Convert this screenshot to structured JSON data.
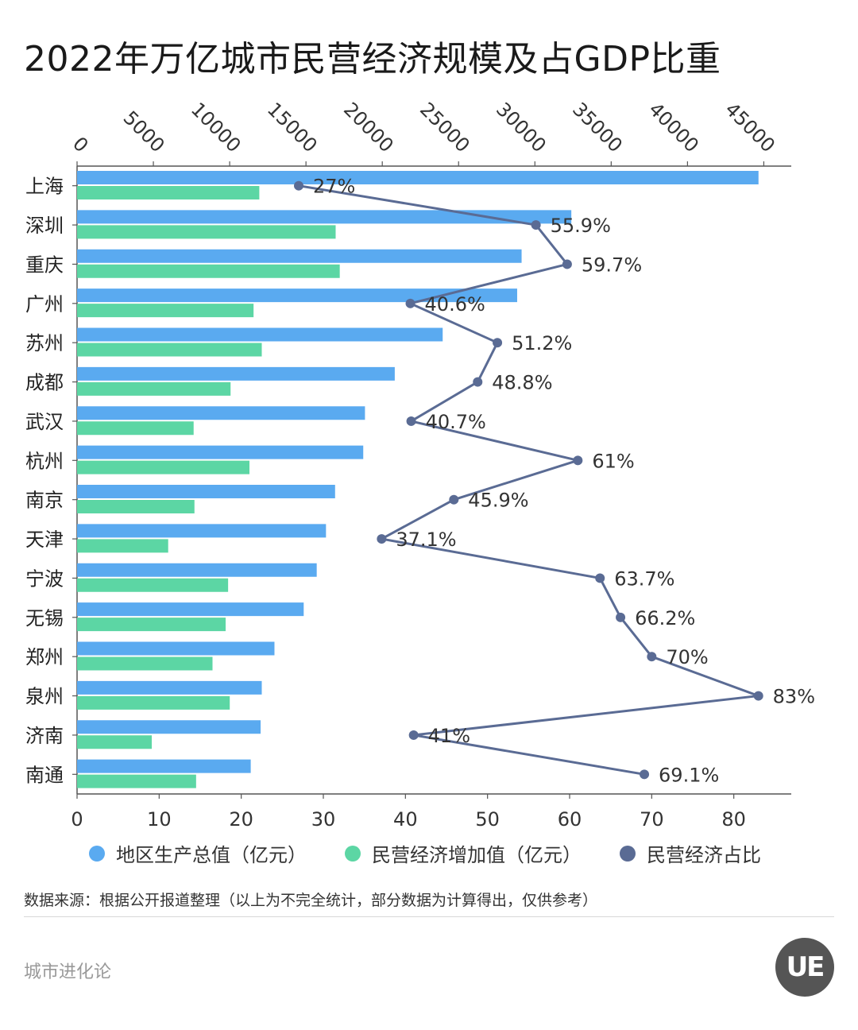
{
  "title": "2022年万亿城市民营经济规模及占GDP比重",
  "chart_data": {
    "type": "bar",
    "orientation": "horizontal",
    "categories": [
      "上海",
      "深圳",
      "重庆",
      "广州",
      "苏州",
      "成都",
      "武汉",
      "杭州",
      "南京",
      "天津",
      "宁波",
      "无锡",
      "郑州",
      "泉州",
      "济南",
      "南通"
    ],
    "series": [
      {
        "name": "地区生产总值（亿元）",
        "color": "#5aaaf0",
        "axis": "top",
        "values": [
          44653,
          32388,
          29129,
          28839,
          23958,
          20818,
          18866,
          18753,
          16908,
          16311,
          15704,
          14851,
          12935,
          12103,
          12028,
          11380
        ]
      },
      {
        "name": "民营经济增加值（亿元）",
        "color": "#5cd6a4",
        "axis": "bottom",
        "values": [
          22.2,
          31.5,
          32.0,
          21.5,
          22.5,
          18.7,
          14.2,
          21.0,
          14.3,
          11.1,
          18.4,
          18.1,
          16.5,
          18.6,
          9.1,
          14.5
        ]
      },
      {
        "name": "民营经济占比",
        "type": "line",
        "color": "#5a6b94",
        "axis": "bottom",
        "values": [
          27,
          55.9,
          59.7,
          40.6,
          51.2,
          48.8,
          40.7,
          61,
          45.9,
          37.1,
          63.7,
          66.2,
          70,
          83,
          41,
          69.1
        ],
        "labels": [
          "27%",
          "55.9%",
          "59.7%",
          "40.6%",
          "51.2%",
          "48.8%",
          "40.7%",
          "61%",
          "45.9%",
          "37.1%",
          "63.7%",
          "66.2%",
          "70%",
          "83%",
          "41%",
          "69.1%"
        ]
      }
    ],
    "top_axis": {
      "ticks": [
        0,
        5000,
        10000,
        15000,
        20000,
        25000,
        30000,
        35000,
        40000,
        45000
      ],
      "range": [
        0,
        46800
      ]
    },
    "bottom_axis": {
      "ticks": [
        0,
        10,
        20,
        30,
        40,
        50,
        60,
        70,
        80
      ],
      "range": [
        0,
        87
      ]
    },
    "legend_position": "bottom",
    "grid": false
  },
  "legend": [
    {
      "label": "地区生产总值（亿元）",
      "color": "#5aaaf0"
    },
    {
      "label": "民营经济增加值（亿元）",
      "color": "#5cd6a4"
    },
    {
      "label": "民营经济占比",
      "color": "#5a6b94"
    }
  ],
  "source": "数据来源：根据公开报道整理（以上为不完全统计，部分数据为计算得出，仅供参考）",
  "brand": "城市进化论",
  "logo_text": "UE"
}
